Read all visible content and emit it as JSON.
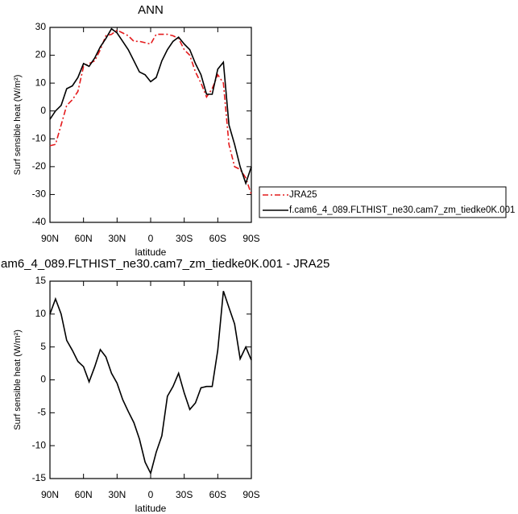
{
  "chart_data": [
    {
      "type": "line",
      "title": "ANN",
      "x_label": "latitude",
      "y_label": "Surf sensible heat (W/m²)",
      "x": [
        90,
        85,
        80,
        75,
        70,
        65,
        60,
        55,
        50,
        45,
        40,
        35,
        30,
        25,
        20,
        15,
        10,
        5,
        0,
        -5,
        -10,
        -15,
        -20,
        -25,
        -30,
        -35,
        -40,
        -45,
        -50,
        -55,
        -60,
        -65,
        -70,
        -75,
        -80,
        -85,
        -90
      ],
      "xlim": [
        90,
        -90
      ],
      "xticks": [
        {
          "value": 90,
          "label": "90N"
        },
        {
          "value": 60,
          "label": "60N"
        },
        {
          "value": 30,
          "label": "30N"
        },
        0,
        {
          "value": -30,
          "label": "30S"
        },
        {
          "value": -60,
          "label": "60S"
        },
        {
          "value": -90,
          "label": "90S"
        }
      ],
      "ylim": [
        -40,
        30
      ],
      "yticks": [
        -40,
        -30,
        -20,
        -10,
        0,
        10,
        20,
        30
      ],
      "legend": "right",
      "series": [
        {
          "name": "JRA25",
          "color": "#e41a1c",
          "dashed": true,
          "values": [
            -12.5,
            -12,
            -5,
            2,
            4,
            7,
            16,
            17,
            18,
            22,
            27,
            27.5,
            29,
            28,
            27,
            25,
            25,
            24.5,
            24,
            27.5,
            27.5,
            27.5,
            27,
            26,
            22,
            20,
            14,
            10,
            5,
            8,
            13,
            10,
            -12,
            -20,
            -21,
            -24,
            -30
          ]
        },
        {
          "name": "f.cam6_4_089.FLTHIST_ne30.cam7_zm_tiedke0K.001",
          "color": "#000000",
          "dashed": false,
          "values": [
            -3,
            0,
            2,
            8,
            9,
            12,
            17,
            16,
            19,
            23,
            26,
            29.5,
            28,
            25,
            22,
            18,
            14,
            13,
            10.5,
            12,
            18,
            22,
            25,
            26.5,
            24,
            22,
            17,
            13,
            6,
            6,
            15,
            17.5,
            -5,
            -12,
            -20,
            -26,
            -20
          ]
        }
      ]
    },
    {
      "type": "line",
      "title": "am6_4_089.FLTHIST_ne30.cam7_zm_tiedke0K.001 - JRA25",
      "x_label": "latitude",
      "y_label": "Surf sensible heat (W/m²)",
      "x": [
        90,
        85,
        80,
        75,
        70,
        65,
        60,
        55,
        50,
        45,
        40,
        35,
        30,
        25,
        20,
        15,
        10,
        5,
        0,
        -5,
        -10,
        -15,
        -20,
        -25,
        -30,
        -35,
        -40,
        -45,
        -50,
        -55,
        -60,
        -65,
        -70,
        -75,
        -80,
        -85,
        -90
      ],
      "xlim": [
        90,
        -90
      ],
      "xticks": [
        {
          "value": 90,
          "label": "90N"
        },
        {
          "value": 60,
          "label": "60N"
        },
        {
          "value": 30,
          "label": "30N"
        },
        0,
        {
          "value": -30,
          "label": "30S"
        },
        {
          "value": -60,
          "label": "60S"
        },
        {
          "value": -90,
          "label": "90S"
        }
      ],
      "ylim": [
        -15,
        15
      ],
      "yticks": [
        -15,
        -10,
        -5,
        0,
        5,
        10,
        15
      ],
      "series": [
        {
          "color": "#000000",
          "dashed": false,
          "values": [
            10,
            12.3,
            10,
            6,
            4.5,
            2.8,
            2,
            -0.3,
            2,
            4.6,
            3.5,
            1,
            -0.5,
            -3,
            -4.8,
            -6.5,
            -9,
            -12.5,
            -14.2,
            -11,
            -8.5,
            -2.5,
            -1,
            1,
            -2,
            -4.5,
            -3.5,
            -1.2,
            -1,
            -1,
            4.5,
            13.5,
            11,
            8.5,
            3.2,
            5,
            3
          ]
        }
      ]
    }
  ]
}
